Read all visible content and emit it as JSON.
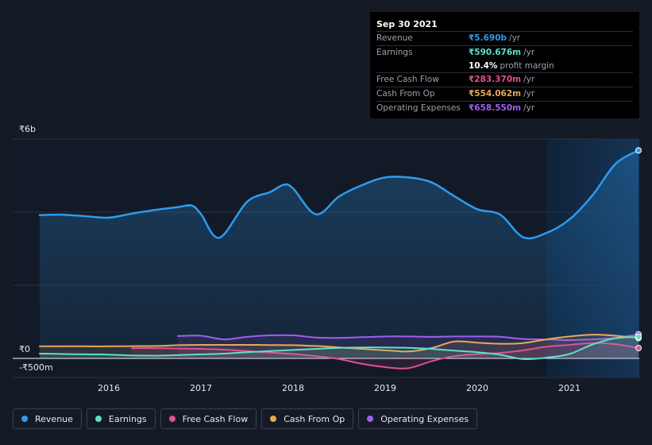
{
  "tooltip": {
    "date": "Sep 30 2021",
    "rows": [
      {
        "label": "Revenue",
        "value": "₹5.690b",
        "unit": "/yr",
        "color": "#2d9cf0"
      },
      {
        "label": "Earnings",
        "value": "₹590.676m",
        "unit": "/yr",
        "color": "#5ee0c8"
      },
      {
        "label": "",
        "value": "10.4%",
        "unit": "profit margin",
        "color": "#ffffff"
      },
      {
        "label": "Free Cash Flow",
        "value": "₹283.370m",
        "unit": "/yr",
        "color": "#e0508f"
      },
      {
        "label": "Cash From Op",
        "value": "₹554.062m",
        "unit": "/yr",
        "color": "#e8a858"
      },
      {
        "label": "Operating Expenses",
        "value": "₹658.550m",
        "unit": "/yr",
        "color": "#a05ef0"
      }
    ]
  },
  "legend": [
    {
      "label": "Revenue",
      "color": "#2d9cf0"
    },
    {
      "label": "Earnings",
      "color": "#5ee0c8"
    },
    {
      "label": "Free Cash Flow",
      "color": "#e0508f"
    },
    {
      "label": "Cash From Op",
      "color": "#e8a858"
    },
    {
      "label": "Operating Expenses",
      "color": "#a05ef0"
    }
  ],
  "chart_data": {
    "type": "area",
    "y_tick_labels": [
      "₹6b",
      "₹0",
      "-₹500m"
    ],
    "x_tick_labels": [
      "2016",
      "2017",
      "2018",
      "2019",
      "2020",
      "2021"
    ],
    "ylim": [
      -500,
      6000
    ],
    "y_units": "₹m",
    "x_range": [
      2015.25,
      2021.75
    ],
    "highlight_from": 2020.75,
    "grid": true,
    "series": [
      {
        "name": "Revenue",
        "color": "#2d9cf0",
        "fill": true,
        "points": [
          [
            2015.25,
            3920
          ],
          [
            2015.5,
            3930
          ],
          [
            2015.75,
            3890
          ],
          [
            2016.0,
            3850
          ],
          [
            2016.25,
            3960
          ],
          [
            2016.5,
            4060
          ],
          [
            2016.75,
            4140
          ],
          [
            2016.9,
            4180
          ],
          [
            2017.0,
            3950
          ],
          [
            2017.2,
            3300
          ],
          [
            2017.5,
            4280
          ],
          [
            2017.75,
            4550
          ],
          [
            2017.9,
            4750
          ],
          [
            2018.0,
            4650
          ],
          [
            2018.25,
            3940
          ],
          [
            2018.5,
            4430
          ],
          [
            2018.75,
            4740
          ],
          [
            2019.0,
            4950
          ],
          [
            2019.25,
            4950
          ],
          [
            2019.5,
            4820
          ],
          [
            2019.75,
            4440
          ],
          [
            2020.0,
            4080
          ],
          [
            2020.25,
            3930
          ],
          [
            2020.5,
            3310
          ],
          [
            2020.75,
            3430
          ],
          [
            2021.0,
            3800
          ],
          [
            2021.25,
            4460
          ],
          [
            2021.5,
            5320
          ],
          [
            2021.75,
            5690
          ]
        ]
      },
      {
        "name": "Earnings",
        "color": "#5ee0c8",
        "fill": true,
        "points": [
          [
            2015.25,
            130
          ],
          [
            2015.5,
            120
          ],
          [
            2015.75,
            110
          ],
          [
            2016.0,
            105
          ],
          [
            2016.25,
            80
          ],
          [
            2016.5,
            75
          ],
          [
            2016.75,
            90
          ],
          [
            2017.0,
            110
          ],
          [
            2017.25,
            130
          ],
          [
            2017.5,
            170
          ],
          [
            2017.75,
            200
          ],
          [
            2018.0,
            230
          ],
          [
            2018.25,
            260
          ],
          [
            2018.5,
            290
          ],
          [
            2018.75,
            300
          ],
          [
            2019.0,
            300
          ],
          [
            2019.25,
            290
          ],
          [
            2019.5,
            260
          ],
          [
            2019.75,
            210
          ],
          [
            2020.0,
            170
          ],
          [
            2020.25,
            100
          ],
          [
            2020.5,
            -20
          ],
          [
            2020.75,
            20
          ],
          [
            2021.0,
            120
          ],
          [
            2021.25,
            380
          ],
          [
            2021.5,
            550
          ],
          [
            2021.75,
            590
          ]
        ]
      },
      {
        "name": "Free Cash Flow",
        "color": "#e0508f",
        "fill": true,
        "points": [
          [
            2016.25,
            280
          ],
          [
            2016.5,
            280
          ],
          [
            2016.75,
            270
          ],
          [
            2017.0,
            260
          ],
          [
            2017.25,
            240
          ],
          [
            2017.5,
            200
          ],
          [
            2017.75,
            160
          ],
          [
            2018.0,
            120
          ],
          [
            2018.25,
            60
          ],
          [
            2018.5,
            -20
          ],
          [
            2018.75,
            -150
          ],
          [
            2019.0,
            -240
          ],
          [
            2019.25,
            -270
          ],
          [
            2019.5,
            -80
          ],
          [
            2019.75,
            60
          ],
          [
            2020.0,
            120
          ],
          [
            2020.25,
            150
          ],
          [
            2020.5,
            220
          ],
          [
            2020.75,
            320
          ],
          [
            2021.0,
            370
          ],
          [
            2021.25,
            420
          ],
          [
            2021.5,
            390
          ],
          [
            2021.75,
            283
          ]
        ]
      },
      {
        "name": "Cash From Op",
        "color": "#e8a858",
        "fill": true,
        "points": [
          [
            2015.25,
            330
          ],
          [
            2015.5,
            330
          ],
          [
            2015.75,
            330
          ],
          [
            2016.0,
            330
          ],
          [
            2016.25,
            335
          ],
          [
            2016.5,
            340
          ],
          [
            2016.75,
            360
          ],
          [
            2017.0,
            370
          ],
          [
            2017.25,
            370
          ],
          [
            2017.5,
            370
          ],
          [
            2017.75,
            365
          ],
          [
            2018.0,
            360
          ],
          [
            2018.25,
            340
          ],
          [
            2018.5,
            300
          ],
          [
            2018.75,
            260
          ],
          [
            2019.0,
            220
          ],
          [
            2019.25,
            190
          ],
          [
            2019.5,
            280
          ],
          [
            2019.75,
            460
          ],
          [
            2020.0,
            430
          ],
          [
            2020.25,
            400
          ],
          [
            2020.5,
            420
          ],
          [
            2020.75,
            520
          ],
          [
            2021.0,
            600
          ],
          [
            2021.25,
            650
          ],
          [
            2021.5,
            620
          ],
          [
            2021.75,
            554
          ]
        ]
      },
      {
        "name": "Operating Expenses",
        "color": "#a05ef0",
        "fill": true,
        "points": [
          [
            2016.75,
            610
          ],
          [
            2017.0,
            620
          ],
          [
            2017.25,
            520
          ],
          [
            2017.5,
            590
          ],
          [
            2017.75,
            630
          ],
          [
            2018.0,
            630
          ],
          [
            2018.25,
            570
          ],
          [
            2018.5,
            560
          ],
          [
            2018.75,
            580
          ],
          [
            2019.0,
            600
          ],
          [
            2019.25,
            600
          ],
          [
            2019.5,
            590
          ],
          [
            2019.75,
            600
          ],
          [
            2020.0,
            600
          ],
          [
            2020.25,
            590
          ],
          [
            2020.5,
            530
          ],
          [
            2020.75,
            520
          ],
          [
            2021.0,
            500
          ],
          [
            2021.25,
            520
          ],
          [
            2021.5,
            560
          ],
          [
            2021.75,
            658
          ]
        ]
      }
    ]
  }
}
